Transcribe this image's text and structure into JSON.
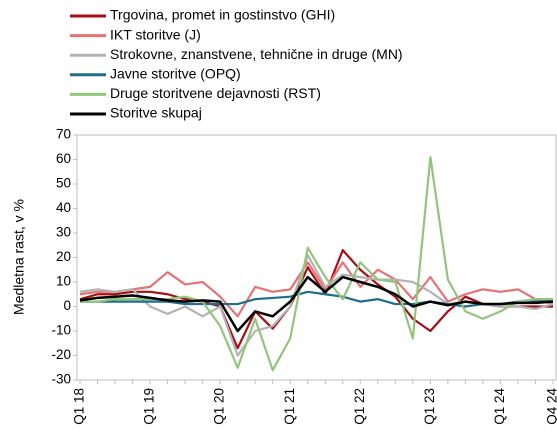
{
  "chart_data": {
    "type": "line",
    "ylabel": "Medletna rast, v %",
    "categories": [
      "Q1 18",
      null,
      null,
      null,
      "Q1 19",
      null,
      null,
      null,
      "Q1 20",
      null,
      null,
      null,
      "Q1 21",
      null,
      null,
      null,
      "Q1 22",
      null,
      null,
      null,
      "Q1 23",
      null,
      null,
      null,
      "Q1 24",
      null,
      null,
      "Q4 24"
    ],
    "ylim": [
      -30,
      70
    ],
    "yticks": [
      -30,
      -20,
      -10,
      0,
      10,
      20,
      30,
      40,
      50,
      60,
      70
    ],
    "series": [
      {
        "name": "Trgovina, promet in gostinstvo (GHI)",
        "color": "#a50f15",
        "values": [
          3,
          5,
          5,
          6,
          6,
          5,
          3,
          2,
          0,
          -17,
          -2,
          -9,
          0,
          16,
          5,
          23,
          15,
          9,
          4,
          -5,
          -10,
          -2,
          4,
          1,
          0,
          0,
          0,
          0
        ]
      },
      {
        "name": "IKT storitve (J)",
        "color": "#e57373",
        "values": [
          5,
          6,
          6,
          7,
          8,
          14,
          9,
          10,
          4,
          -4,
          8,
          6,
          7,
          18,
          7,
          18,
          8,
          15,
          11,
          3,
          12,
          2,
          5,
          7,
          6,
          7,
          3,
          1
        ]
      },
      {
        "name": "Strokovne, znanstvene, tehnične in druge (MN)",
        "color": "#b3b3b3",
        "values": [
          6,
          7,
          6,
          7,
          0,
          -3,
          0,
          -4,
          0,
          -20,
          -10,
          -8,
          0,
          21,
          8,
          13,
          12,
          11,
          11,
          10,
          6,
          1,
          2,
          1,
          0,
          0,
          -1,
          1
        ]
      },
      {
        "name": "Javne storitve (OPQ)",
        "color": "#1f6e8c",
        "values": [
          2,
          2,
          2,
          2,
          2,
          2,
          1,
          1,
          1,
          1,
          3,
          3.5,
          4,
          6,
          5,
          4,
          2,
          3,
          1,
          1,
          2,
          1,
          0,
          1,
          1,
          2,
          2,
          2.5
        ]
      },
      {
        "name": "Druge storitvene dejavnosti (RST)",
        "color": "#93c47d",
        "values": [
          2,
          2,
          3,
          3,
          3,
          3,
          4,
          2,
          -8,
          -25,
          -5,
          -26,
          -13,
          24,
          12,
          3,
          18,
          11,
          10,
          -13,
          61,
          11,
          -2,
          -5,
          -2,
          2,
          3,
          3
        ]
      },
      {
        "name": "Storitve skupaj",
        "color": "#000000",
        "values": [
          2.5,
          3.5,
          4,
          4.5,
          3.5,
          2.5,
          2,
          2.5,
          2,
          -10,
          -2,
          -4,
          2,
          12,
          6,
          12,
          10,
          8,
          5,
          0,
          2,
          0.5,
          2,
          1,
          1,
          1.5,
          1.5,
          2
        ]
      }
    ]
  }
}
